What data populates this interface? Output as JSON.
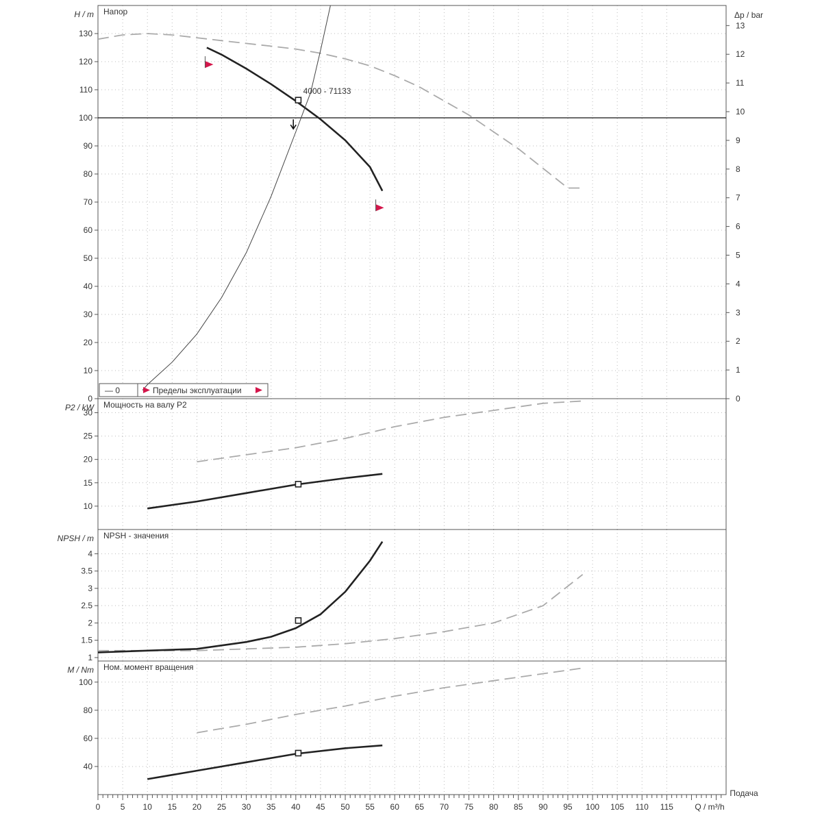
{
  "chart_data": {
    "type": "line",
    "x": {
      "label": "Q / m³/h",
      "label_right": "Подача",
      "range": [
        0,
        127
      ],
      "ticks": [
        0,
        5,
        10,
        15,
        20,
        25,
        30,
        35,
        40,
        45,
        50,
        55,
        60,
        65,
        70,
        75,
        80,
        85,
        90,
        95,
        100,
        105,
        110,
        115
      ]
    },
    "panels": [
      {
        "id": "head",
        "title": "Напор",
        "ylabel": "H / m",
        "ylabel_right": "Δp / bar",
        "ylim": [
          0,
          140
        ],
        "yticks": [
          0,
          10,
          20,
          30,
          40,
          50,
          60,
          70,
          80,
          90,
          100,
          110,
          120,
          130
        ],
        "ylim_right": [
          0,
          13.7
        ],
        "yticks_right": [
          0,
          1,
          2,
          3,
          4,
          5,
          6,
          7,
          8,
          9,
          10,
          11,
          12,
          13
        ],
        "hline": 100,
        "curves": [
          {
            "style": "dashed",
            "points": [
              [
                0,
                128
              ],
              [
                5,
                129.5
              ],
              [
                10,
                130
              ],
              [
                15,
                129.5
              ],
              [
                20,
                128.5
              ],
              [
                25,
                127.5
              ],
              [
                30,
                126.5
              ],
              [
                35,
                125.5
              ],
              [
                40,
                124.5
              ],
              [
                45,
                123
              ],
              [
                50,
                121
              ],
              [
                55,
                118.5
              ],
              [
                60,
                115
              ],
              [
                65,
                111
              ],
              [
                70,
                106
              ],
              [
                75,
                101
              ],
              [
                80,
                95
              ],
              [
                85,
                89
              ],
              [
                90,
                82
              ],
              [
                95,
                75
              ],
              [
                98,
                75
              ]
            ]
          },
          {
            "style": "solid",
            "points": [
              [
                22,
                125
              ],
              [
                25,
                122.5
              ],
              [
                30,
                117.5
              ],
              [
                35,
                112
              ],
              [
                40,
                106
              ],
              [
                45,
                99.5
              ],
              [
                50,
                92
              ],
              [
                55,
                82.5
              ],
              [
                57.5,
                74
              ]
            ]
          },
          {
            "style": "thin",
            "points": [
              [
                9,
                3
              ],
              [
                10,
                5
              ],
              [
                15,
                13
              ],
              [
                20,
                23
              ],
              [
                25,
                36
              ],
              [
                30,
                52
              ],
              [
                35,
                72
              ],
              [
                40,
                95
              ],
              [
                43,
                109
              ],
              [
                45,
                124
              ],
              [
                47,
                140
              ]
            ]
          }
        ],
        "markers": [
          {
            "x": 40.5,
            "y": 106.3,
            "type": "square"
          },
          {
            "x": 22.5,
            "y": 119,
            "type": "flag"
          },
          {
            "x": 57,
            "y": 68,
            "type": "flag"
          },
          {
            "x": 39.5,
            "y": 98,
            "type": "arrow"
          }
        ],
        "annotation": {
          "text": "4000 - 71133",
          "x": 41.5,
          "y": 108.5
        },
        "legend": {
          "items": [
            "— 0",
            "Пределы эксплуатации"
          ],
          "position": "bottom-left"
        }
      },
      {
        "id": "power",
        "title": "Мощность на валу P2",
        "ylabel": "P2 / kW",
        "ylim": [
          5,
          33
        ],
        "yticks": [
          10,
          15,
          20,
          25,
          30
        ],
        "curves": [
          {
            "style": "dashed",
            "points": [
              [
                20,
                19.5
              ],
              [
                30,
                21
              ],
              [
                40,
                22.5
              ],
              [
                50,
                24.5
              ],
              [
                60,
                27
              ],
              [
                70,
                29
              ],
              [
                80,
                30.5
              ],
              [
                90,
                32
              ],
              [
                98,
                32.5
              ]
            ]
          },
          {
            "style": "solid",
            "points": [
              [
                10,
                9.5
              ],
              [
                20,
                11
              ],
              [
                30,
                12.8
              ],
              [
                40,
                14.6
              ],
              [
                50,
                16
              ],
              [
                57.5,
                16.9
              ]
            ]
          }
        ],
        "markers": [
          {
            "x": 40.5,
            "y": 14.7,
            "type": "square"
          }
        ]
      },
      {
        "id": "npsh",
        "title": "NPSH - значения",
        "ylabel": "NPSH / m",
        "ylim": [
          0.9,
          4.7
        ],
        "yticks": [
          1,
          1.5,
          2,
          2.5,
          3,
          3.5,
          4
        ],
        "curves": [
          {
            "style": "dashed",
            "points": [
              [
                0,
                1.2
              ],
              [
                20,
                1.2
              ],
              [
                30,
                1.25
              ],
              [
                40,
                1.3
              ],
              [
                50,
                1.4
              ],
              [
                60,
                1.55
              ],
              [
                70,
                1.75
              ],
              [
                80,
                2.0
              ],
              [
                90,
                2.5
              ],
              [
                98,
                3.4
              ]
            ]
          },
          {
            "style": "solid",
            "points": [
              [
                0,
                1.15
              ],
              [
                10,
                1.2
              ],
              [
                20,
                1.25
              ],
              [
                30,
                1.45
              ],
              [
                35,
                1.6
              ],
              [
                40,
                1.85
              ],
              [
                45,
                2.25
              ],
              [
                50,
                2.9
              ],
              [
                55,
                3.8
              ],
              [
                57.5,
                4.35
              ]
            ]
          }
        ],
        "markers": [
          {
            "x": 40.5,
            "y": 2.07,
            "type": "square"
          }
        ]
      },
      {
        "id": "torque",
        "title": "Ном. момент вращения",
        "ylabel": "M / Nm",
        "ylim": [
          20,
          115
        ],
        "yticks": [
          40,
          60,
          80,
          100
        ],
        "curves": [
          {
            "style": "dashed",
            "points": [
              [
                20,
                64
              ],
              [
                30,
                70
              ],
              [
                40,
                77
              ],
              [
                50,
                83
              ],
              [
                60,
                90
              ],
              [
                70,
                96
              ],
              [
                80,
                101
              ],
              [
                90,
                106
              ],
              [
                98,
                110
              ]
            ]
          },
          {
            "style": "solid",
            "points": [
              [
                10,
                31
              ],
              [
                20,
                37
              ],
              [
                30,
                43
              ],
              [
                40,
                49
              ],
              [
                50,
                53
              ],
              [
                57.5,
                55
              ]
            ]
          }
        ],
        "markers": [
          {
            "x": 40.5,
            "y": 49.5,
            "type": "square"
          }
        ]
      }
    ]
  }
}
